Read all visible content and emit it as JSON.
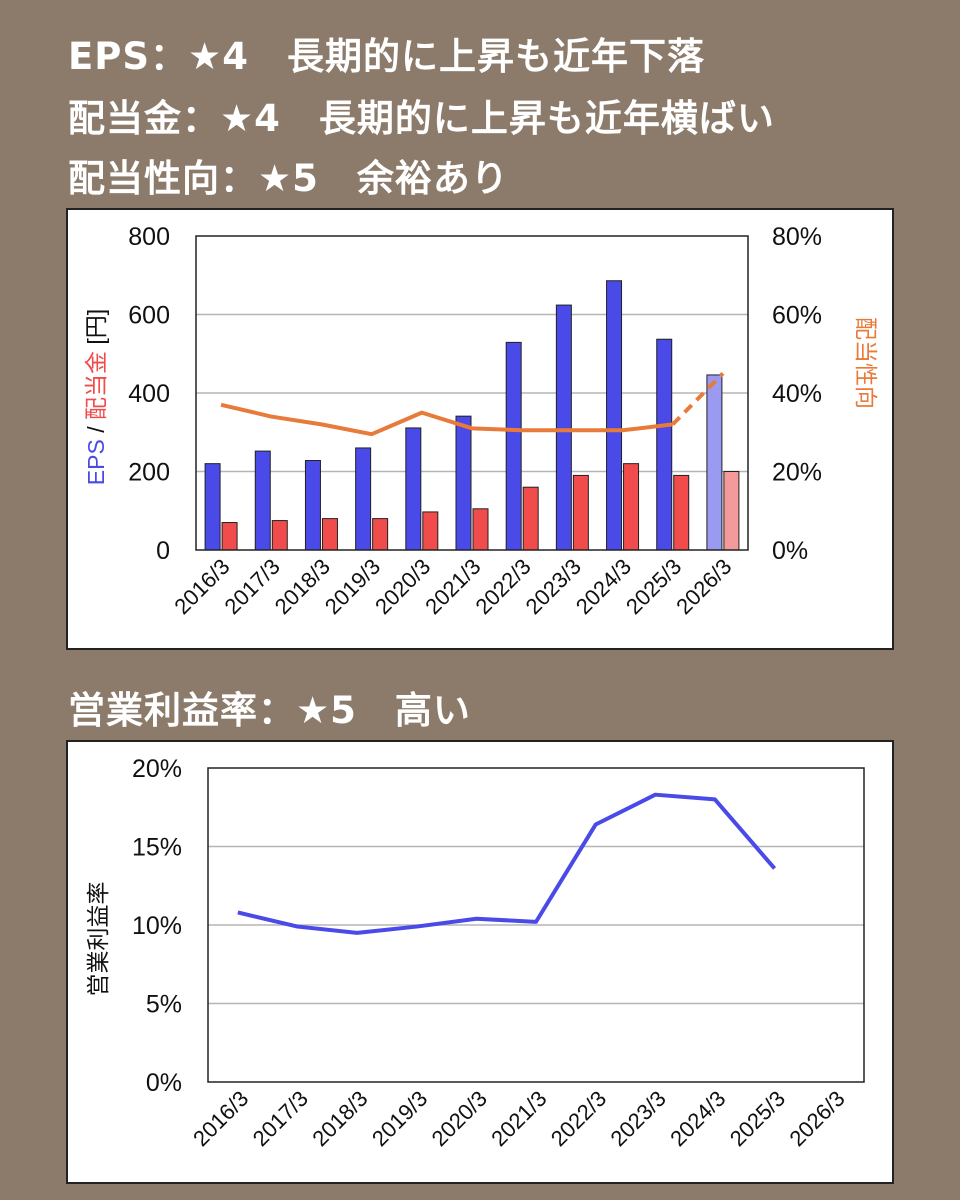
{
  "headings": {
    "eps": "EPS：★4　長期的に上昇も近年下落",
    "dividend": "配当金：★4　長期的に上昇も近年横ばい",
    "payout": "配当性向：★5　余裕あり",
    "margin": "営業利益率：★5　高い"
  },
  "chart_data": [
    {
      "type": "bar",
      "categories": [
        "2016/3",
        "2017/3",
        "2018/3",
        "2019/3",
        "2020/3",
        "2021/3",
        "2022/3",
        "2023/3",
        "2024/3",
        "2025/3",
        "2026/3"
      ],
      "series": [
        {
          "name": "EPS",
          "axis": "left",
          "color": "#4a4ae8",
          "forecast_color": "#9a9af0",
          "values": [
            220,
            252,
            228,
            260,
            311,
            341,
            529,
            624,
            686,
            537,
            446
          ]
        },
        {
          "name": "配当金",
          "axis": "left",
          "color": "#f04c4c",
          "forecast_color": "#f49a9a",
          "values": [
            70,
            75,
            80,
            80,
            97,
            105,
            160,
            190,
            220,
            190,
            200
          ]
        },
        {
          "name": "配当性向",
          "type": "line",
          "axis": "right",
          "color": "#e87a3a",
          "values": [
            37,
            34,
            32,
            29.5,
            35,
            31,
            30.5,
            30.5,
            30.5,
            32,
            45
          ],
          "forecast_from_index": 9
        }
      ],
      "forecast_index": 10,
      "ylim": [
        0,
        800
      ],
      "yticks": [
        "0",
        "200",
        "400",
        "600",
        "800"
      ],
      "y2lim": [
        0,
        80
      ],
      "y2ticks": [
        "0%",
        "20%",
        "40%",
        "60%",
        "80%"
      ],
      "ylabel": {
        "eps": "EPS",
        "sep": " / ",
        "dividend": "配当金",
        "unit": " [円]"
      },
      "y2label": "配当性向",
      "grid": true
    },
    {
      "type": "line",
      "categories": [
        "2016/3",
        "2017/3",
        "2018/3",
        "2019/3",
        "2020/3",
        "2021/3",
        "2022/3",
        "2023/3",
        "2024/3",
        "2025/3",
        "2026/3"
      ],
      "series": [
        {
          "name": "営業利益率",
          "color": "#4a4ae8",
          "values": [
            10.8,
            9.9,
            9.5,
            9.9,
            10.4,
            10.2,
            16.4,
            18.3,
            18.0,
            13.6,
            null
          ]
        }
      ],
      "ylim": [
        0,
        20
      ],
      "yticks": [
        "0%",
        "5%",
        "10%",
        "15%",
        "20%"
      ],
      "ylabel": "営業利益率",
      "grid": true
    }
  ]
}
